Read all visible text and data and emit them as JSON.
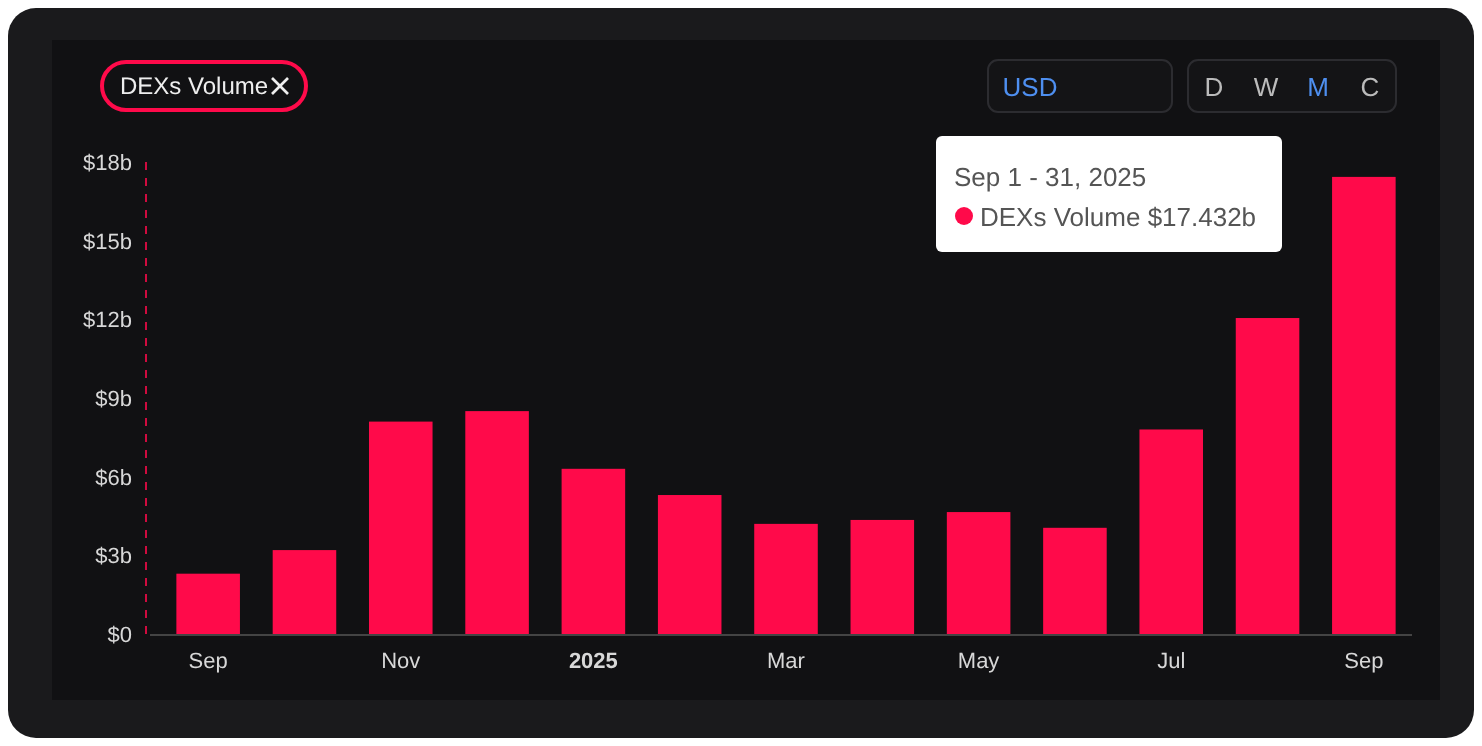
{
  "chart_data": {
    "type": "bar",
    "categories": [
      "Sep",
      null,
      "Nov",
      null,
      "2025",
      null,
      "Mar",
      null,
      "May",
      null,
      "Jul",
      null,
      "Sep"
    ],
    "series": [
      {
        "name": "DEXs Volume",
        "color": "#ff0a4a",
        "values": [
          2.3,
          3.2,
          8.1,
          8.5,
          6.3,
          5.3,
          4.2,
          4.35,
          4.65,
          4.05,
          7.8,
          12.05,
          17.432
        ]
      }
    ],
    "ylim": [
      0,
      18
    ],
    "yticks": [
      {
        "value": 0,
        "label": "$0"
      },
      {
        "value": 3,
        "label": "$3b"
      },
      {
        "value": 6,
        "label": "$6b"
      },
      {
        "value": 9,
        "label": "$9b"
      },
      {
        "value": 12,
        "label": "$12b"
      },
      {
        "value": 15,
        "label": "$15b"
      },
      {
        "value": 18,
        "label": "$18b"
      }
    ],
    "legend": "top left",
    "grid": false,
    "annotations": [
      "Sep 1 - 31, 2025",
      "DEXs Volume $17.432b",
      "USD",
      "D",
      "W",
      "M",
      "C"
    ]
  }
}
